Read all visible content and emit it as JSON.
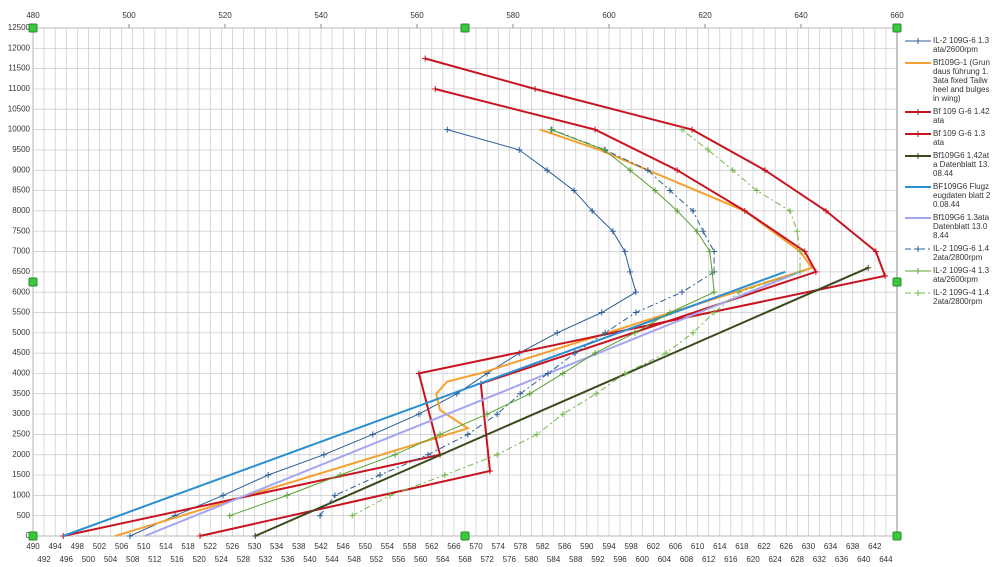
{
  "chart_data": {
    "type": "line",
    "xlim": [
      480,
      660
    ],
    "xticks": [
      480,
      500,
      520,
      540,
      560,
      580,
      600,
      620,
      640,
      660
    ],
    "x2lim": [
      490,
      646
    ],
    "x2ticks": [
      490,
      492,
      494,
      496,
      498,
      500,
      502,
      504,
      506,
      508,
      510,
      512,
      514,
      516,
      518,
      520,
      522,
      524,
      526,
      528,
      530,
      532,
      534,
      536,
      538,
      540,
      542,
      544,
      546,
      548,
      550,
      552,
      554,
      556,
      558,
      560,
      562,
      564,
      566,
      568,
      570,
      572,
      574,
      576,
      578,
      580,
      582,
      584,
      586,
      588,
      590,
      592,
      594,
      596,
      598,
      600,
      602,
      604,
      606,
      608,
      610,
      612,
      614,
      616,
      618,
      620,
      622,
      624,
      626,
      628,
      630,
      632,
      634,
      636,
      638,
      640,
      642,
      644
    ],
    "ylim": [
      0,
      12500
    ],
    "yticks": [
      0,
      500,
      1000,
      1500,
      2000,
      2500,
      3000,
      3500,
      4000,
      4500,
      5000,
      5500,
      6000,
      6500,
      7000,
      7500,
      8000,
      8500,
      9000,
      9500,
      10000,
      10500,
      11000,
      11500,
      12000,
      12500
    ],
    "grid": true,
    "legend": "right",
    "series": [
      {
        "name": "IL-2 109G-6 1.3ata/2600rpm",
        "color": "#2a5d9a",
        "width": 1,
        "marker": "plus",
        "dash": "none",
        "x": [
          500.2,
          509.6,
          519.6,
          529.0,
          540.6,
          550.8,
          560.4,
          568.3,
          574.6,
          581.3,
          589.2,
          598.5,
          605.6,
          604.4,
          603.3,
          600.8,
          596.5,
          592.7,
          587.1,
          581.3,
          566.3
        ],
        "values": [
          0,
          500,
          1000,
          1500,
          2000,
          2500,
          3000,
          3500,
          4000,
          4500,
          5000,
          5500,
          6000,
          6500,
          7000,
          7500,
          8000,
          8500,
          9000,
          9500,
          10000
        ]
      },
      {
        "name": "Bf109G-1 (Grundaus führung 1.3ata fixed Tailwheel and bulges in wing)",
        "color": "#f5a030",
        "width": 2,
        "marker": "none",
        "dash": "none",
        "x": [
          497.1,
          570.6,
          564.8,
          564.0,
          566.3,
          573.1,
          642.3,
          639.8,
          628.3,
          598.1,
          585.6
        ],
        "values": [
          0,
          2650,
          3100,
          3500,
          3800,
          4000,
          6600,
          7000,
          8000,
          9500,
          10000
        ]
      },
      {
        "name": "Bf 109 G-6 1.42 ata",
        "color": "#c8141e",
        "width": 2,
        "marker": "plus",
        "dash": "none",
        "x": [
          486.3,
          564.8,
          560.4,
          657.5,
          655.6,
          645.2,
          632.5,
          617.3,
          584.6,
          561.7
        ],
        "values": [
          0,
          2000,
          4000,
          6400,
          7000,
          8000,
          9000,
          10000,
          11000,
          11750
        ]
      },
      {
        "name": "Bf 109 G-6 1.3 ata",
        "color": "#c8141e",
        "width": 2,
        "marker": "plus",
        "dash": "none",
        "x": [
          514.8,
          575.2,
          573.3,
          643.1,
          640.8,
          628.3,
          614.2,
          597.1,
          563.8
        ],
        "values": [
          0,
          1600,
          3750,
          6500,
          7000,
          8000,
          9000,
          10000,
          11000
        ]
      },
      {
        "name": "Bf109G6 1.42ata Datenblatt 13.08.44",
        "color": "#3b4a1c",
        "width": 2,
        "marker": "plus",
        "dash": "none",
        "x": [
          526.3,
          654.0
        ],
        "values": [
          0,
          6600
        ]
      },
      {
        "name": "BF109G6 Flugzeugdaten blatt 20.08.44",
        "color": "#2a8fd0",
        "width": 2,
        "marker": "none",
        "dash": "none",
        "x": [
          486.3,
          636.7
        ],
        "values": [
          0,
          6500
        ]
      },
      {
        "name": "Bf109G6 1.3ata Datenblatt 13.08.44",
        "color": "#a4a4f0",
        "width": 2,
        "marker": "none",
        "dash": "none",
        "x": [
          503.3,
          639.8
        ],
        "values": [
          0,
          6500
        ]
      },
      {
        "name": "IL-2 109G-6 1.42ata/2800rpm",
        "color": "#2a5d9a",
        "width": 1,
        "marker": "plus",
        "dash": "6 3 2 3",
        "x": [
          539.8,
          542.9,
          552.3,
          562.3,
          570.6,
          576.7,
          581.5,
          587.3,
          592.9,
          599.2,
          605.6,
          615.2,
          621.9,
          621.9,
          619.6,
          617.5,
          612.7,
          608.1,
          599.2,
          588.1
        ],
        "values": [
          500,
          1000,
          1500,
          2000,
          2500,
          3000,
          3500,
          4000,
          4500,
          5000,
          5500,
          6000,
          6500,
          7000,
          7500,
          8000,
          8500,
          9000,
          9500,
          10000
        ]
      },
      {
        "name": "IL-2 109G-4 1.3ata/2600rpm",
        "color": "#5aa032",
        "width": 1,
        "marker": "plus",
        "dash": "none",
        "x": [
          521.0,
          532.9,
          544.0,
          555.4,
          564.8,
          574.6,
          583.5,
          590.4,
          597.1,
          605.4,
          612.7,
          621.9,
          621.5,
          621.0,
          618.3,
          614.2,
          609.6,
          604.4,
          599.0,
          587.9
        ],
        "values": [
          500,
          1000,
          1500,
          2000,
          2500,
          3000,
          3500,
          4000,
          4500,
          5000,
          5500,
          6000,
          6500,
          7000,
          7500,
          8000,
          8500,
          9000,
          9500,
          10000
        ]
      },
      {
        "name": "IL-2 109G-4 1.42ata/2800rpm",
        "color": "#72b84a",
        "width": 1,
        "marker": "plus",
        "dash": "6 3 2 3",
        "x": [
          546.5,
          554.4,
          565.8,
          576.7,
          585.0,
          590.4,
          597.3,
          603.3,
          611.9,
          617.5,
          621.9,
          627.1,
          639.8,
          639.8,
          639.2,
          637.7,
          630.8,
          625.8,
          620.6,
          615.2
        ],
        "values": [
          500,
          1000,
          1500,
          2000,
          2500,
          3000,
          3500,
          4000,
          4500,
          5000,
          5500,
          6000,
          6500,
          7000,
          7500,
          8000,
          8500,
          9000,
          9500,
          10000
        ]
      }
    ]
  }
}
